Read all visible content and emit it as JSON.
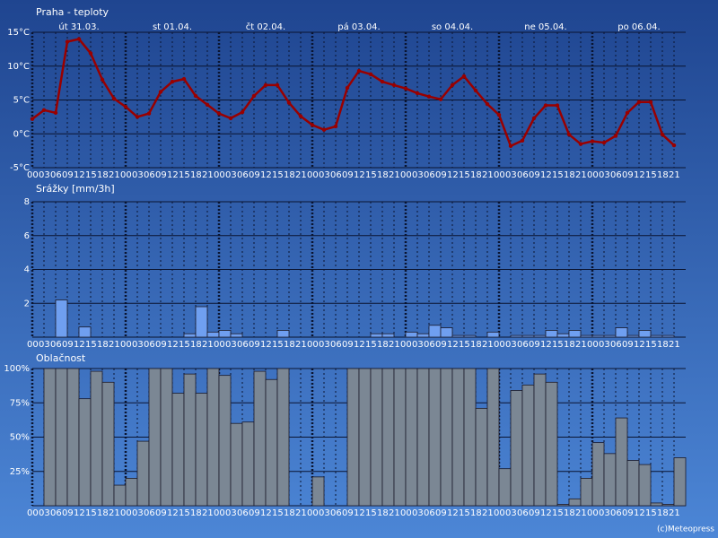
{
  "chart_data": [
    {
      "type": "line",
      "title": "Praha - teploty",
      "color": "#990000",
      "days": [
        "út 31.03.",
        "st 01.04.",
        "čt 02.04.",
        "pá 03.04.",
        "so 04.04.",
        "ne 05.04.",
        "po 06.04."
      ],
      "categories": [
        "00",
        "03",
        "06",
        "09",
        "12",
        "15",
        "18",
        "21",
        "00",
        "03",
        "06",
        "09",
        "12",
        "15",
        "18",
        "21",
        "00",
        "03",
        "06",
        "09",
        "12",
        "15",
        "18",
        "21",
        "00",
        "03",
        "06",
        "09",
        "12",
        "15",
        "18",
        "21",
        "00",
        "03",
        "06",
        "09",
        "12",
        "15",
        "18",
        "21",
        "00",
        "03",
        "06",
        "09",
        "12",
        "15",
        "18",
        "21",
        "00",
        "03",
        "06",
        "09",
        "12",
        "15",
        "18",
        "21"
      ],
      "values": [
        2.2,
        3.5,
        3.1,
        13.6,
        14.0,
        11.9,
        8.0,
        5.2,
        4.0,
        2.5,
        3.0,
        6.2,
        7.7,
        8.1,
        5.6,
        4.3,
        3.0,
        2.3,
        3.2,
        5.6,
        7.2,
        7.2,
        4.6,
        2.6,
        1.3,
        0.6,
        1.1,
        6.8,
        9.3,
        8.8,
        7.7,
        7.2,
        6.7,
        6.0,
        5.5,
        5.1,
        7.2,
        8.5,
        6.4,
        4.4,
        2.8,
        -1.8,
        -1.0,
        2.3,
        4.2,
        4.2,
        -0.1,
        -1.5,
        -1.1,
        -1.3,
        -0.3,
        3.1,
        4.7,
        4.7,
        -0.1,
        -1.7
      ],
      "ylim": [
        -5,
        15
      ],
      "yticks": [
        {
          "value": -5,
          "label": "-5°C"
        },
        {
          "value": 0,
          "label": "0°C"
        },
        {
          "value": 5,
          "label": "5°C"
        },
        {
          "value": 10,
          "label": "10°C"
        },
        {
          "value": 15,
          "label": "15°C"
        }
      ],
      "grid": true
    },
    {
      "type": "bar",
      "title": "Srážky [mm/3h]",
      "color": "#6f9ff0",
      "categories": [
        "00",
        "03",
        "06",
        "09",
        "12",
        "15",
        "18",
        "21",
        "00",
        "03",
        "06",
        "09",
        "12",
        "15",
        "18",
        "21",
        "00",
        "03",
        "06",
        "09",
        "12",
        "15",
        "18",
        "21",
        "00",
        "03",
        "06",
        "09",
        "12",
        "15",
        "18",
        "21",
        "00",
        "03",
        "06",
        "09",
        "12",
        "15",
        "18",
        "21",
        "00",
        "03",
        "06",
        "09",
        "12",
        "15",
        "18",
        "21",
        "00",
        "03",
        "06",
        "09",
        "12",
        "15",
        "18",
        "21"
      ],
      "values": [
        0,
        0,
        2.2,
        0,
        0.6,
        0,
        0,
        0,
        0,
        0,
        0,
        0,
        0,
        0.2,
        1.8,
        0.3,
        0.4,
        0.2,
        0,
        0,
        0,
        0.4,
        0,
        0,
        0,
        0,
        0,
        0,
        0,
        0.2,
        0.2,
        0,
        0.3,
        0.2,
        0.7,
        0.55,
        0.1,
        0.1,
        0,
        0.3,
        0,
        0.1,
        0.1,
        0.1,
        0.4,
        0.2,
        0.4,
        0.1,
        0.1,
        0.1,
        0.55,
        0.1,
        0.4,
        0.1,
        0.1,
        0
      ],
      "ylim": [
        0,
        8
      ],
      "yticks": [
        2,
        4,
        6,
        8
      ],
      "grid": true
    },
    {
      "type": "bar",
      "title": "Oblačnost",
      "color": "#7b8794",
      "categories": [
        "00",
        "03",
        "06",
        "09",
        "12",
        "15",
        "18",
        "21",
        "00",
        "03",
        "06",
        "09",
        "12",
        "15",
        "18",
        "21",
        "00",
        "03",
        "06",
        "09",
        "12",
        "15",
        "18",
        "21",
        "00",
        "03",
        "06",
        "09",
        "12",
        "15",
        "18",
        "21",
        "00",
        "03",
        "06",
        "09",
        "12",
        "15",
        "18",
        "21",
        "00",
        "03",
        "06",
        "09",
        "12",
        "15",
        "18",
        "21",
        "00",
        "03",
        "06",
        "09",
        "12",
        "15",
        "18",
        "21"
      ],
      "values": [
        0,
        100,
        100,
        100,
        78,
        98,
        90,
        15,
        20,
        47,
        100,
        100,
        82,
        96,
        82,
        100,
        95,
        60,
        61,
        98,
        92,
        100,
        0,
        0,
        21,
        0,
        0,
        100,
        100,
        100,
        100,
        100,
        100,
        100,
        100,
        100,
        100,
        100,
        71,
        100,
        27,
        84,
        88,
        96,
        90,
        1,
        5,
        20,
        46,
        38,
        64,
        33,
        30,
        2,
        1,
        35
      ],
      "ylim": [
        0,
        100
      ],
      "yticks": [
        {
          "value": 25,
          "label": "25%"
        },
        {
          "value": 50,
          "label": "50%"
        },
        {
          "value": 75,
          "label": "75%"
        },
        {
          "value": 100,
          "label": "100%"
        }
      ],
      "grid": true
    }
  ],
  "footer": "(c)Meteopress"
}
